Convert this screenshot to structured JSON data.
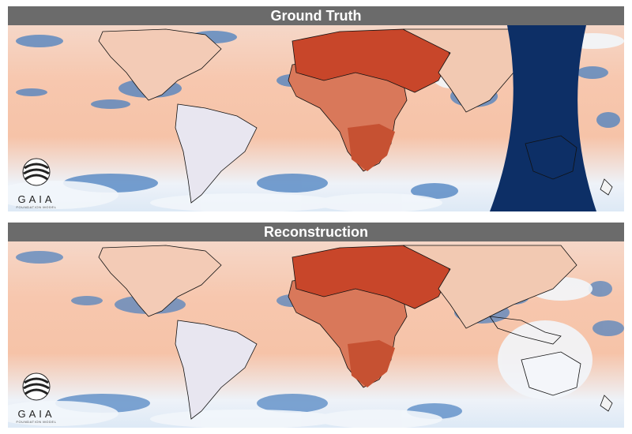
{
  "panels": {
    "top": {
      "title": "Ground Truth"
    },
    "bottom": {
      "title": "Reconstruction"
    }
  },
  "logo": {
    "word": "GAIA",
    "tagline": "FOUNDATION MODEL"
  },
  "colors": {
    "ocean_warm": "#f6c4aa",
    "land_hot": "#c8462a",
    "land_very_hot": "#b3301e",
    "cold_blue": "#3a73b7",
    "missing_data": "#0d2f66",
    "white_cloud": "#f4f7fb",
    "coastline": "#111111"
  }
}
